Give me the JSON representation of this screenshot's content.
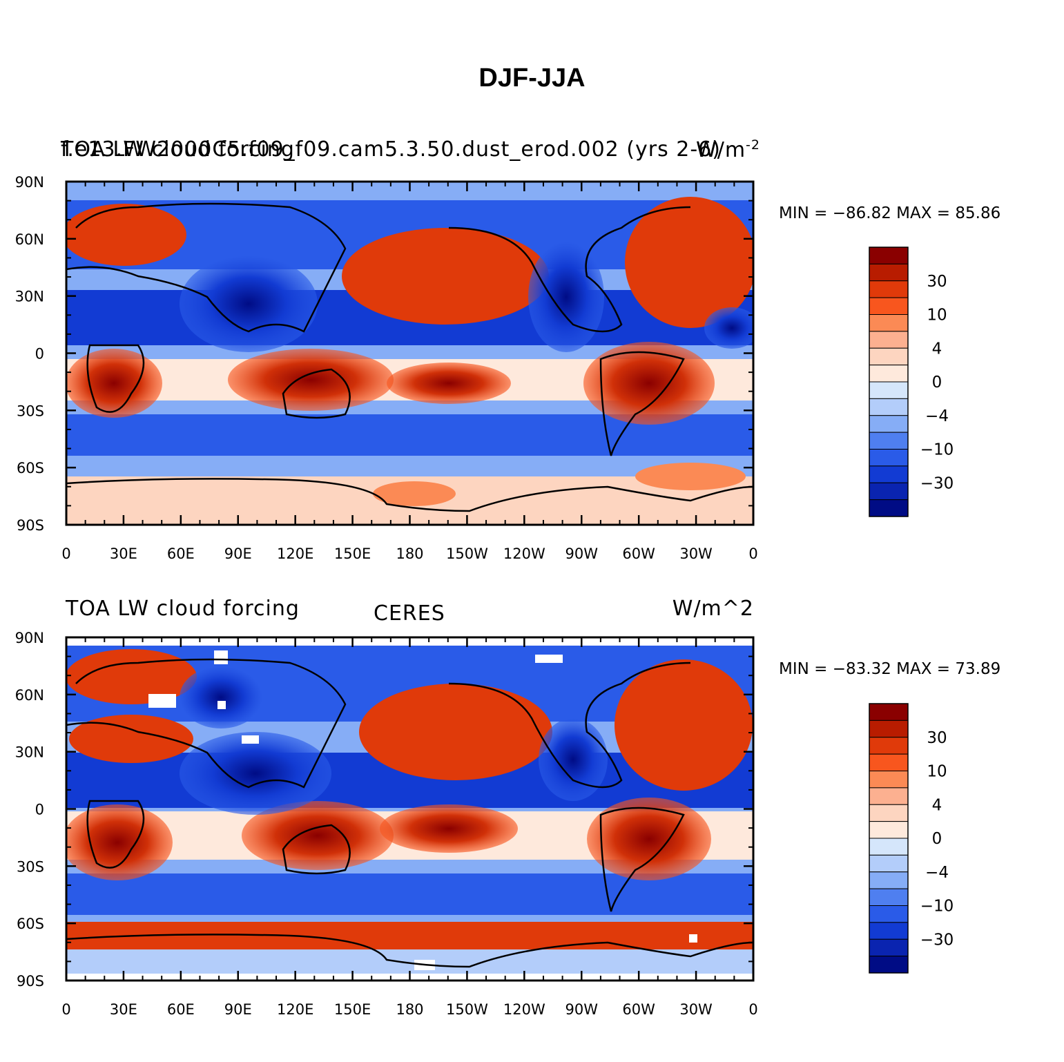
{
  "figure": {
    "title": "DJF-JJA"
  },
  "panels": [
    {
      "left_label": "f.e13.FW2000C5.f09_f09.cam5.3.50.dust_erod.002 (yrs 2-6)",
      "left_label_overprint": "TOA LW cloud forcing",
      "right_label": "W/m",
      "right_label_sup": "-2",
      "center_label": "",
      "min_max": "MIN = −86.82  MAX =   85.86"
    },
    {
      "left_label": "TOA LW cloud forcing",
      "center_label": "CERES",
      "right_label": "W/m^2",
      "min_max": "MIN = −83.32  MAX =   73.89"
    }
  ],
  "axes": {
    "lat_ticks": [
      "90N",
      "60N",
      "30N",
      "0",
      "30S",
      "60S",
      "90S"
    ],
    "lon_ticks": [
      "0",
      "30E",
      "60E",
      "90E",
      "120E",
      "150E",
      "180",
      "150W",
      "120W",
      "90W",
      "60W",
      "30W",
      "0"
    ]
  },
  "colorbar": {
    "labels": [
      "30",
      "10",
      "4",
      "0",
      "−4",
      "−10",
      "−30"
    ],
    "colors": [
      "#8a0000",
      "#b81c00",
      "#e03a0a",
      "#f8561e",
      "#fb8a55",
      "#fcb090",
      "#fdd5c0",
      "#fee9dc",
      "#d5e6fb",
      "#b3cdfa",
      "#86adf6",
      "#4f7ff0",
      "#2a5be8",
      "#123bd3",
      "#0a24b0",
      "#000c85"
    ]
  }
}
